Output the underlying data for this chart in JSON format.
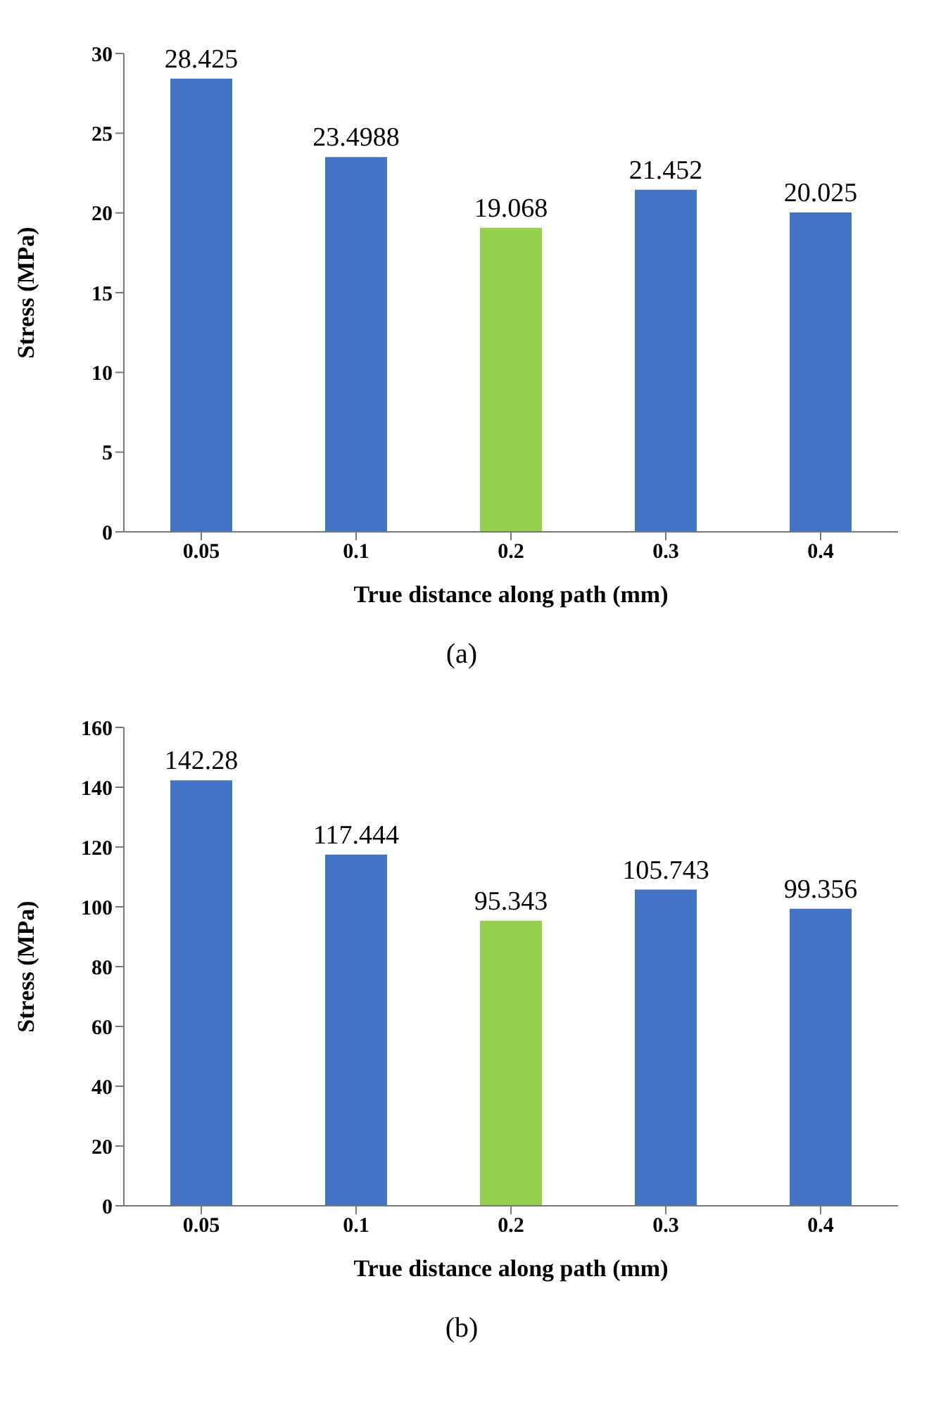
{
  "chart_data": [
    {
      "type": "bar",
      "xlabel": "True  distance along path  (mm)",
      "ylabel": "Stress (MPa)",
      "categories": [
        "0.05",
        "0.1",
        "0.2",
        "0.3",
        "0.4"
      ],
      "values": [
        28.425,
        23.4988,
        19.068,
        21.452,
        20.025
      ],
      "colors": [
        "#4472c4",
        "#4472c4",
        "#92d050",
        "#4472c4",
        "#4472c4"
      ],
      "ylim": [
        0,
        30
      ],
      "yticks": [
        0,
        5,
        10,
        15,
        20,
        25,
        30
      ],
      "data_labels": true,
      "grid": false,
      "legend": false,
      "annotations": [
        "(a)"
      ]
    },
    {
      "type": "bar",
      "xlabel": "True  distance along path  (mm)",
      "ylabel": "Stress (MPa)",
      "categories": [
        "0.05",
        "0.1",
        "0.2",
        "0.3",
        "0.4"
      ],
      "values": [
        142.28,
        117.444,
        95.343,
        105.743,
        99.356
      ],
      "colors": [
        "#4472c4",
        "#4472c4",
        "#92d050",
        "#4472c4",
        "#4472c4"
      ],
      "ylim": [
        0,
        160
      ],
      "yticks": [
        0,
        20,
        40,
        60,
        80,
        100,
        120,
        140,
        160
      ],
      "data_labels": true,
      "grid": false,
      "legend": false,
      "annotations": [
        "(b)"
      ]
    }
  ]
}
